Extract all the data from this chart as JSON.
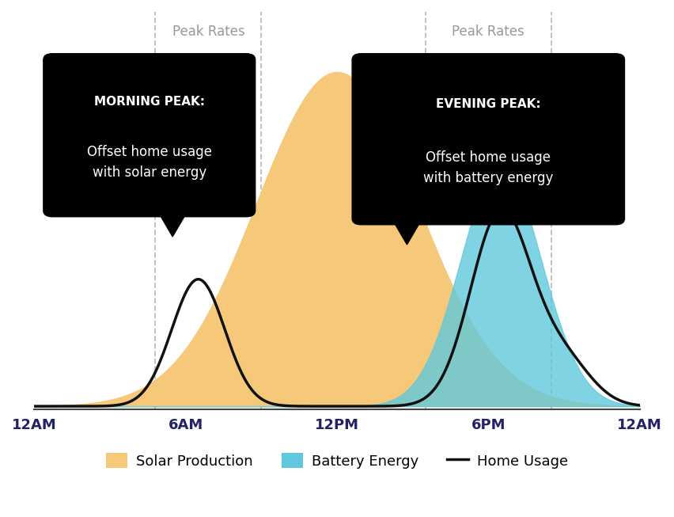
{
  "background_color": "#ffffff",
  "x_ticks": [
    0,
    6,
    12,
    18,
    24
  ],
  "x_tick_labels": [
    "12AM",
    "6AM",
    "12PM",
    "6PM",
    "12AM"
  ],
  "x_range": [
    0,
    24
  ],
  "y_range": [
    0,
    1.0
  ],
  "solar_color": "#F5C87A",
  "battery_color_top": "#60C8DC",
  "battery_color_bottom": "#90C8A0",
  "home_usage_color": "#111111",
  "dashed_line_color": "#BBBBBB",
  "peak_rates_color": "#999999",
  "peak_rates_font_size": 12,
  "morning_box_text_bold": "MORNING PEAK:",
  "morning_box_text_normal": "Offset home usage\nwith solar energy",
  "evening_box_text_bold": "EVENING PEAK:",
  "evening_box_text_normal": "Offset home usage\nwith battery energy",
  "legend_solar_label": "Solar Production",
  "legend_battery_label": "Battery Energy",
  "legend_home_label": "Home Usage",
  "axis_label_fontsize": 13,
  "axis_label_color": "#222266"
}
